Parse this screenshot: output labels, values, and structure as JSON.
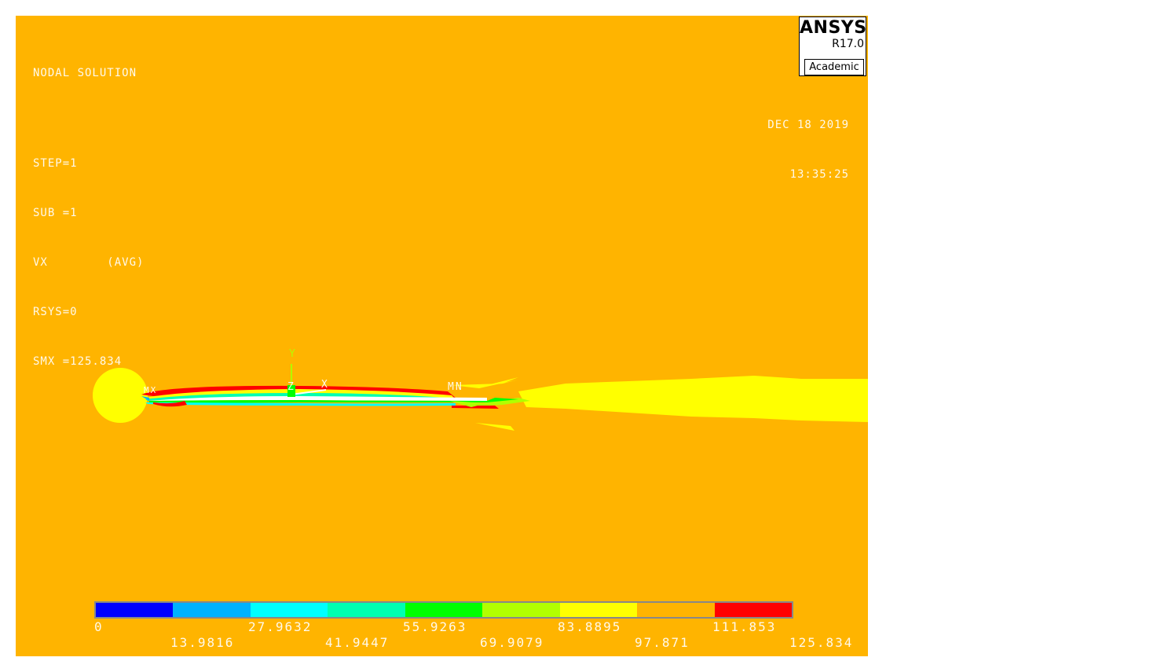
{
  "header": {
    "title": "NODAL SOLUTION",
    "step": "STEP=1",
    "sub": "SUB =1",
    "item": "VX        (AVG)",
    "rsys": "RSYS=0",
    "smx": "SMX =125.834"
  },
  "logo": {
    "brand": "ANSYS",
    "version": "R17.0",
    "edition": "Academic"
  },
  "datestamp": {
    "date": "DEC 18 2019",
    "time": "13:35:25"
  },
  "markers": {
    "mx": "MX",
    "mn": "MN",
    "axis_y": "Y",
    "axis_x": "X",
    "axis_z": "Z"
  },
  "colors": {
    "background": "#ffb400",
    "contour": [
      "#0000ff",
      "#00b2ff",
      "#00ffff",
      "#00ffb2",
      "#00ff00",
      "#b2ff00",
      "#ffff00",
      "#ffb400",
      "#ff0000"
    ]
  },
  "legend": {
    "min": 0,
    "max": 125.834,
    "top_labels": [
      "0",
      "27.9632",
      "55.9263",
      "83.8895",
      "111.853"
    ],
    "bottom_labels": [
      "13.9816",
      "41.9447",
      "69.9079",
      "97.871",
      "125.834"
    ]
  }
}
